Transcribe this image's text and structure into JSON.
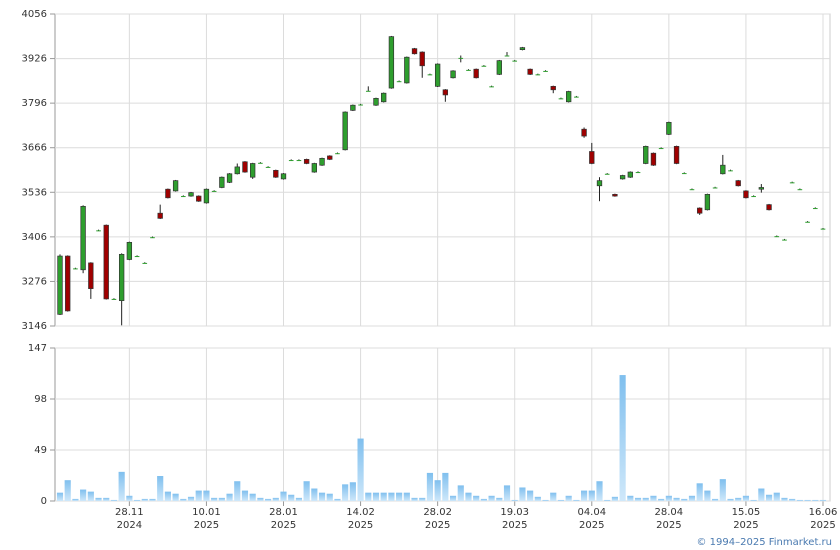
{
  "chart_data": [
    {
      "type": "candlestick",
      "categories": [
        null,
        null,
        null,
        null,
        null,
        null,
        null,
        null,
        null,
        [
          "28.11",
          "2024"
        ],
        null,
        null,
        null,
        null,
        null,
        null,
        null,
        null,
        null,
        [
          "10.01",
          "2025"
        ],
        null,
        null,
        null,
        null,
        null,
        null,
        null,
        null,
        null,
        [
          "28.01",
          "2025"
        ],
        null,
        null,
        null,
        null,
        null,
        null,
        null,
        null,
        null,
        [
          "14.02",
          "2025"
        ],
        null,
        null,
        null,
        null,
        null,
        null,
        null,
        null,
        null,
        [
          "28.02",
          "2025"
        ],
        null,
        null,
        null,
        null,
        null,
        null,
        null,
        null,
        null,
        [
          "19.03",
          "2025"
        ],
        null,
        null,
        null,
        null,
        null,
        null,
        null,
        null,
        null,
        [
          "04.04",
          "2025"
        ],
        null,
        null,
        null,
        null,
        null,
        null,
        null,
        null,
        null,
        [
          "28.04",
          "2025"
        ],
        null,
        null,
        null,
        null,
        null,
        null,
        null,
        null,
        null,
        [
          "15.05",
          "2025"
        ],
        null,
        null,
        null,
        null,
        null,
        null,
        null,
        null,
        null,
        [
          "16.06",
          "2025"
        ]
      ],
      "open": [
        3180,
        3350,
        3314,
        3310,
        3330,
        3425,
        3440,
        3225,
        3220,
        3340,
        3350,
        3330,
        3405,
        3475,
        3545,
        3540,
        3525,
        3525,
        3525,
        3505,
        3540,
        3550,
        3565,
        3590,
        3625,
        3580,
        3622,
        3610,
        3600,
        3575,
        3630,
        3630,
        3632,
        3595,
        3615,
        3642,
        3650,
        3660,
        3775,
        3792,
        3832,
        3790,
        3800,
        3840,
        3860,
        3855,
        3955,
        3945,
        3880,
        3845,
        3835,
        3870,
        3928,
        3893,
        3895,
        3905,
        3845,
        3880,
        3935,
        3920,
        3952,
        3895,
        3880,
        3890,
        3845,
        3810,
        3800,
        3815,
        3720,
        3655,
        3555,
        3590,
        3530,
        3575,
        3580,
        3595,
        3620,
        3650,
        3665,
        3705,
        3670,
        3592,
        3545,
        3490,
        3485,
        3550,
        3590,
        3600,
        3570,
        3540,
        3525,
        3545,
        3500,
        3408,
        3398,
        3565,
        3545,
        3450,
        3490,
        3430
      ],
      "high": [
        3355,
        3352,
        3316,
        3498,
        3332,
        3427,
        3442,
        3227,
        3358,
        3392,
        3352,
        3332,
        3407,
        3500,
        3547,
        3572,
        3527,
        3537,
        3527,
        3547,
        3542,
        3582,
        3592,
        3620,
        3627,
        3622,
        3624,
        3612,
        3602,
        3592,
        3632,
        3632,
        3634,
        3622,
        3637,
        3644,
        3652,
        3772,
        3792,
        3794,
        3845,
        3812,
        3827,
        3992,
        3862,
        3932,
        3957,
        3947,
        3882,
        3912,
        3837,
        3892,
        3935,
        3895,
        3897,
        3907,
        3847,
        3922,
        3945,
        3922,
        3960,
        3897,
        3882,
        3892,
        3847,
        3812,
        3832,
        3817,
        3725,
        3680,
        3580,
        3592,
        3532,
        3587,
        3597,
        3597,
        3672,
        3652,
        3667,
        3742,
        3672,
        3594,
        3547,
        3492,
        3532,
        3552,
        3645,
        3602,
        3572,
        3542,
        3527,
        3560,
        3502,
        3410,
        3400,
        3567,
        3547,
        3452,
        3492,
        3432
      ],
      "low": [
        3178,
        3188,
        3312,
        3300,
        3225,
        3423,
        3223,
        3223,
        3148,
        3338,
        3348,
        3328,
        3403,
        3458,
        3518,
        3538,
        3523,
        3523,
        3508,
        3503,
        3538,
        3548,
        3563,
        3588,
        3593,
        3575,
        3620,
        3608,
        3578,
        3573,
        3628,
        3628,
        3618,
        3593,
        3613,
        3630,
        3648,
        3658,
        3773,
        3790,
        3830,
        3788,
        3798,
        3838,
        3858,
        3853,
        3938,
        3870,
        3878,
        3843,
        3800,
        3868,
        3915,
        3891,
        3868,
        3903,
        3843,
        3878,
        3933,
        3918,
        3950,
        3878,
        3878,
        3888,
        3825,
        3808,
        3798,
        3813,
        3695,
        3618,
        3510,
        3588,
        3523,
        3573,
        3578,
        3593,
        3618,
        3613,
        3663,
        3703,
        3618,
        3590,
        3543,
        3470,
        3483,
        3548,
        3588,
        3598,
        3553,
        3518,
        3523,
        3535,
        3483,
        3406,
        3396,
        3563,
        3543,
        3448,
        3488,
        3428
      ],
      "close": [
        3350,
        3190,
        3314,
        3495,
        3255,
        3425,
        3225,
        3225,
        3355,
        3390,
        3350,
        3330,
        3405,
        3460,
        3520,
        3570,
        3525,
        3535,
        3510,
        3545,
        3540,
        3580,
        3590,
        3610,
        3595,
        3620,
        3622,
        3610,
        3580,
        3590,
        3630,
        3630,
        3620,
        3620,
        3635,
        3632,
        3650,
        3770,
        3790,
        3792,
        3832,
        3810,
        3825,
        3990,
        3860,
        3930,
        3940,
        3905,
        3880,
        3910,
        3820,
        3890,
        3928,
        3893,
        3870,
        3905,
        3845,
        3920,
        3935,
        3920,
        3958,
        3880,
        3880,
        3890,
        3835,
        3810,
        3830,
        3815,
        3700,
        3620,
        3570,
        3590,
        3525,
        3585,
        3595,
        3595,
        3670,
        3615,
        3665,
        3740,
        3620,
        3592,
        3545,
        3475,
        3530,
        3550,
        3615,
        3600,
        3555,
        3520,
        3525,
        3550,
        3485,
        3408,
        3398,
        3565,
        3545,
        3450,
        3490,
        3430
      ],
      "up_color": "#2e9e2e",
      "down_color": "#a00000",
      "ylim": [
        3146,
        4056
      ],
      "yticks": [
        3146,
        3276,
        3406,
        3536,
        3666,
        3796,
        3926,
        4056
      ],
      "grid": true
    },
    {
      "type": "bar",
      "values": [
        8,
        20,
        2,
        11,
        9,
        3,
        3,
        1,
        28,
        5,
        1,
        2,
        2,
        24,
        9,
        7,
        2,
        4,
        10,
        10,
        3,
        3,
        7,
        19,
        10,
        7,
        3,
        2,
        3,
        9,
        6,
        3,
        19,
        12,
        8,
        7,
        2,
        16,
        18,
        60,
        8,
        8,
        8,
        8,
        8,
        8,
        3,
        3,
        27,
        20,
        27,
        5,
        15,
        8,
        5,
        2,
        5,
        3,
        15,
        1,
        13,
        10,
        4,
        1,
        8,
        1,
        5,
        1,
        10,
        10,
        19,
        1,
        4,
        121,
        5,
        3,
        3,
        5,
        2,
        5,
        3,
        2,
        5,
        17,
        10,
        2,
        21,
        2,
        3,
        5,
        1,
        12,
        6,
        8,
        3,
        2,
        1,
        1,
        1,
        1
      ],
      "color": "#8ec8ef",
      "ylim": [
        0,
        147
      ],
      "yticks": [
        0,
        49,
        98,
        147
      ],
      "grid": true
    }
  ],
  "footer": "© 1994–2025 Finmarket.ru"
}
